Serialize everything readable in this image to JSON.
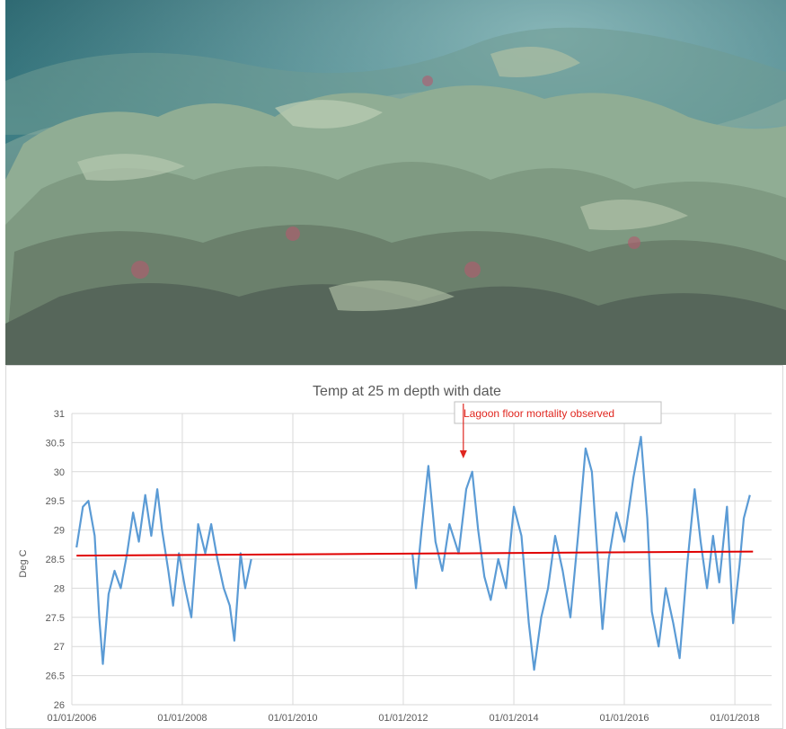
{
  "photo": {
    "description_icon": "coral-reef-photo-icon"
  },
  "colors": {
    "series": "#5b9bd5",
    "mean_line": "#e00000",
    "annotation": "#e0261f",
    "grid": "#d9d9d9",
    "text": "#595959"
  },
  "chart_data": {
    "type": "line",
    "title": "Temp at 25 m depth with date",
    "xlabel": "",
    "ylabel": "Deg C",
    "ylim": [
      26,
      31
    ],
    "yticks": [
      "26",
      "26.5",
      "27",
      "27.5",
      "28",
      "28.5",
      "29",
      "29.5",
      "30",
      "30.5",
      "31"
    ],
    "xlim": [
      "2006-01-01",
      "2018-09-01"
    ],
    "xticks": [
      "01/01/2006",
      "01/01/2008",
      "01/01/2010",
      "01/01/2012",
      "01/01/2014",
      "01/01/2016",
      "01/01/2018"
    ],
    "grid": true,
    "annotation": {
      "text": "Lagoon floor mortality observed",
      "arrow_date": "2013-02-01"
    },
    "series": [
      {
        "segments": [
          [
            [
              "2006-02-01",
              28.7
            ],
            [
              "2006-03-15",
              29.4
            ],
            [
              "2006-04-20",
              29.5
            ],
            [
              "2006-06-01",
              28.9
            ],
            [
              "2006-07-01",
              27.5
            ],
            [
              "2006-07-25",
              26.7
            ],
            [
              "2006-09-01",
              27.9
            ],
            [
              "2006-10-10",
              28.3
            ],
            [
              "2006-11-20",
              28.0
            ],
            [
              "2007-01-01",
              28.6
            ],
            [
              "2007-02-10",
              29.3
            ],
            [
              "2007-03-20",
              28.8
            ],
            [
              "2007-05-01",
              29.6
            ],
            [
              "2007-06-10",
              28.9
            ],
            [
              "2007-07-20",
              29.7
            ],
            [
              "2007-08-20",
              29.0
            ],
            [
              "2007-10-01",
              28.3
            ],
            [
              "2007-11-01",
              27.7
            ],
            [
              "2007-12-10",
              28.6
            ],
            [
              "2008-01-20",
              28.0
            ],
            [
              "2008-03-01",
              27.5
            ],
            [
              "2008-04-15",
              29.1
            ],
            [
              "2008-06-01",
              28.6
            ],
            [
              "2008-07-10",
              29.1
            ],
            [
              "2008-08-20",
              28.5
            ],
            [
              "2008-10-01",
              28.0
            ],
            [
              "2008-11-10",
              27.7
            ],
            [
              "2008-12-10",
              27.1
            ],
            [
              "2009-01-20",
              28.6
            ],
            [
              "2009-02-20",
              28.0
            ],
            [
              "2009-04-01",
              28.5
            ]
          ],
          [
            [
              "2012-03-01",
              28.6
            ],
            [
              "2012-03-25",
              28.0
            ],
            [
              "2012-05-01",
              29.0
            ],
            [
              "2012-06-15",
              30.1
            ],
            [
              "2012-08-01",
              28.8
            ],
            [
              "2012-09-15",
              28.3
            ],
            [
              "2012-11-01",
              29.1
            ],
            [
              "2013-01-01",
              28.6
            ],
            [
              "2013-02-20",
              29.7
            ],
            [
              "2013-04-01",
              30.0
            ],
            [
              "2013-05-10",
              29.0
            ],
            [
              "2013-06-20",
              28.2
            ],
            [
              "2013-08-01",
              27.8
            ],
            [
              "2013-09-20",
              28.5
            ],
            [
              "2013-11-10",
              28.0
            ],
            [
              "2014-01-01",
              29.4
            ],
            [
              "2014-02-20",
              28.9
            ],
            [
              "2014-04-10",
              27.4
            ],
            [
              "2014-05-15",
              26.6
            ],
            [
              "2014-07-01",
              27.5
            ],
            [
              "2014-08-15",
              28.0
            ],
            [
              "2014-10-01",
              28.9
            ],
            [
              "2014-11-20",
              28.3
            ],
            [
              "2015-01-10",
              27.5
            ],
            [
              "2015-03-01",
              28.9
            ],
            [
              "2015-04-20",
              30.4
            ],
            [
              "2015-06-01",
              30.0
            ],
            [
              "2015-07-10",
              28.5
            ],
            [
              "2015-08-10",
              27.3
            ],
            [
              "2015-09-20",
              28.5
            ],
            [
              "2015-11-10",
              29.3
            ],
            [
              "2016-01-01",
              28.8
            ],
            [
              "2016-03-01",
              29.9
            ],
            [
              "2016-04-20",
              30.6
            ],
            [
              "2016-06-01",
              29.2
            ],
            [
              "2016-07-01",
              27.6
            ],
            [
              "2016-08-15",
              27.0
            ],
            [
              "2016-10-01",
              28.0
            ],
            [
              "2016-11-20",
              27.4
            ],
            [
              "2017-01-01",
              26.8
            ],
            [
              "2017-02-20",
              28.4
            ],
            [
              "2017-04-10",
              29.7
            ],
            [
              "2017-05-20",
              28.8
            ],
            [
              "2017-07-01",
              28.0
            ],
            [
              "2017-08-10",
              28.9
            ],
            [
              "2017-09-20",
              28.1
            ],
            [
              "2017-11-10",
              29.4
            ],
            [
              "2017-12-20",
              27.4
            ],
            [
              "2018-02-01",
              28.4
            ],
            [
              "2018-03-01",
              29.2
            ],
            [
              "2018-04-10",
              29.6
            ]
          ]
        ]
      },
      {
        "kind": "mean",
        "values": [
          [
            "2006-02-01",
            28.56
          ],
          [
            "2018-05-01",
            28.63
          ]
        ]
      }
    ]
  }
}
